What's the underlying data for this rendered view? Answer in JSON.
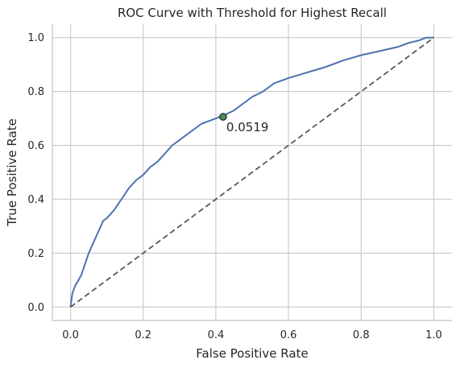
{
  "chart_data": {
    "type": "line",
    "title": "ROC Curve with Threshold for Highest Recall",
    "xlabel": "False Positive Rate",
    "ylabel": "True Positive Rate",
    "xlim": [
      -0.05,
      1.05
    ],
    "ylim": [
      -0.05,
      1.05
    ],
    "xticks": [
      0.0,
      0.2,
      0.4,
      0.6,
      0.8,
      1.0
    ],
    "yticks": [
      0.0,
      0.2,
      0.4,
      0.6,
      0.8,
      1.0
    ],
    "xtick_labels": [
      "0.0",
      "0.2",
      "0.4",
      "0.6",
      "0.8",
      "1.0"
    ],
    "ytick_labels": [
      "0.0",
      "0.2",
      "0.4",
      "0.6",
      "0.8",
      "1.0"
    ],
    "grid": true,
    "series": [
      {
        "role": "roc-curve",
        "color": "#4c72b0",
        "style": "solid",
        "x": [
          0.0,
          0.005,
          0.01,
          0.015,
          0.02,
          0.03,
          0.04,
          0.05,
          0.06,
          0.07,
          0.08,
          0.09,
          0.1,
          0.12,
          0.14,
          0.16,
          0.18,
          0.2,
          0.22,
          0.24,
          0.26,
          0.28,
          0.3,
          0.32,
          0.34,
          0.36,
          0.38,
          0.4,
          0.42,
          0.45,
          0.48,
          0.5,
          0.53,
          0.56,
          0.6,
          0.65,
          0.7,
          0.75,
          0.8,
          0.85,
          0.9,
          0.93,
          0.96,
          0.98,
          1.0
        ],
        "y": [
          0.0,
          0.05,
          0.07,
          0.085,
          0.095,
          0.12,
          0.16,
          0.2,
          0.23,
          0.26,
          0.29,
          0.32,
          0.33,
          0.36,
          0.4,
          0.44,
          0.47,
          0.49,
          0.52,
          0.54,
          0.57,
          0.6,
          0.62,
          0.64,
          0.66,
          0.68,
          0.69,
          0.7,
          0.71,
          0.73,
          0.76,
          0.78,
          0.8,
          0.83,
          0.85,
          0.87,
          0.89,
          0.915,
          0.935,
          0.95,
          0.965,
          0.98,
          0.99,
          1.0,
          1.0
        ]
      },
      {
        "role": "chance-line",
        "color": "#595959",
        "style": "dashed",
        "x": [
          0.0,
          1.0
        ],
        "y": [
          0.0,
          1.0
        ]
      }
    ],
    "marker": {
      "x": 0.42,
      "y": 0.706,
      "label": "0.0519",
      "fill": "#4c8a5a",
      "edge": "#222222"
    }
  }
}
